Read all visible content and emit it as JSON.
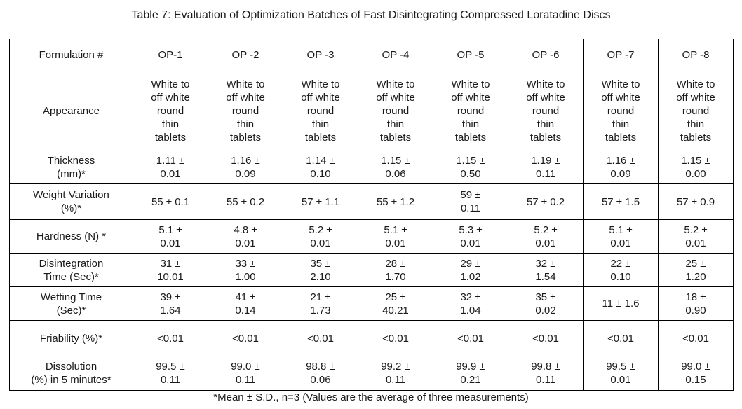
{
  "title": "Table 7: Evaluation of Optimization Batches of Fast Disintegrating Compressed Loratadine Discs",
  "footnote": "*Mean ± S.D., n=3 (Values are the average of three measurements)",
  "table": {
    "header": [
      "Formulation #",
      "OP-1",
      "OP -2",
      "OP -3",
      "OP -4",
      "OP -5",
      "OP -6",
      "OP -7",
      "OP -8"
    ],
    "rows": [
      {
        "label": "Appearance",
        "values": [
          "White to\noff white\nround\nthin\ntablets",
          "White to\noff white\nround\nthin\ntablets",
          "White to\noff white\nround\nthin\ntablets",
          "White to\noff white\nround\nthin\ntablets",
          "White to\noff white\nround\nthin\ntablets",
          "White to\noff white\nround\nthin\ntablets",
          "White to\noff white\nround\nthin\ntablets",
          "White to\noff white\nround\nthin\ntablets"
        ]
      },
      {
        "label": "Thickness\n(mm)*",
        "values": [
          "1.11 ±\n0.01",
          "1.16 ±\n0.09",
          "1.14 ±\n0.10",
          "1.15 ±\n0.06",
          "1.15 ±\n0.50",
          "1.19 ±\n0.11",
          "1.16 ±\n0.09",
          "1.15 ±\n0.00"
        ]
      },
      {
        "label": "Weight Variation\n(%)*",
        "values": [
          "55 ± 0.1",
          "55 ± 0.2",
          "57 ± 1.1",
          "55 ± 1.2",
          "59 ±\n0.11",
          "57 ± 0.2",
          "57 ± 1.5",
          "57 ± 0.9"
        ]
      },
      {
        "label": "Hardness (N) *",
        "values": [
          "5.1 ±\n0.01",
          "4.8 ±\n0.01",
          "5.2 ±\n0.01",
          "5.1 ±\n0.01",
          "5.3 ±\n0.01",
          "5.2 ±\n0.01",
          "5.1 ±\n0.01",
          "5.2 ±\n0.01"
        ]
      },
      {
        "label": "Disintegration\nTime (Sec)*",
        "values": [
          "31 ±\n10.01",
          "33 ±\n1.00",
          "35 ±\n2.10",
          "28 ±\n1.70",
          "29 ±\n1.02",
          "32 ±\n1.54",
          "22 ±\n0.10",
          "25 ±\n1.20"
        ]
      },
      {
        "label": "Wetting Time\n(Sec)*",
        "values": [
          "39 ±\n1.64",
          "41 ±\n0.14",
          "21 ±\n1.73",
          "25 ±\n40.21",
          "32 ±\n1.04",
          "35 ±\n0.02",
          "11 ± 1.6",
          "18 ±\n0.90"
        ]
      },
      {
        "label": "Friability (%)*",
        "values": [
          "<0.01",
          "<0.01",
          "<0.01",
          "<0.01",
          "<0.01",
          "<0.01",
          "<0.01",
          "<0.01"
        ]
      },
      {
        "label": "Dissolution\n(%) in 5 minutes*",
        "values": [
          "99.5 ±\n0.11",
          "99.0 ±\n0.11",
          "98.8 ±\n0.06",
          "99.2 ±\n0.11",
          "99.9 ±\n0.21",
          "99.8 ±\n0.11",
          "99.5 ±\n0.01",
          "99.0 ±\n0.15"
        ]
      }
    ]
  }
}
